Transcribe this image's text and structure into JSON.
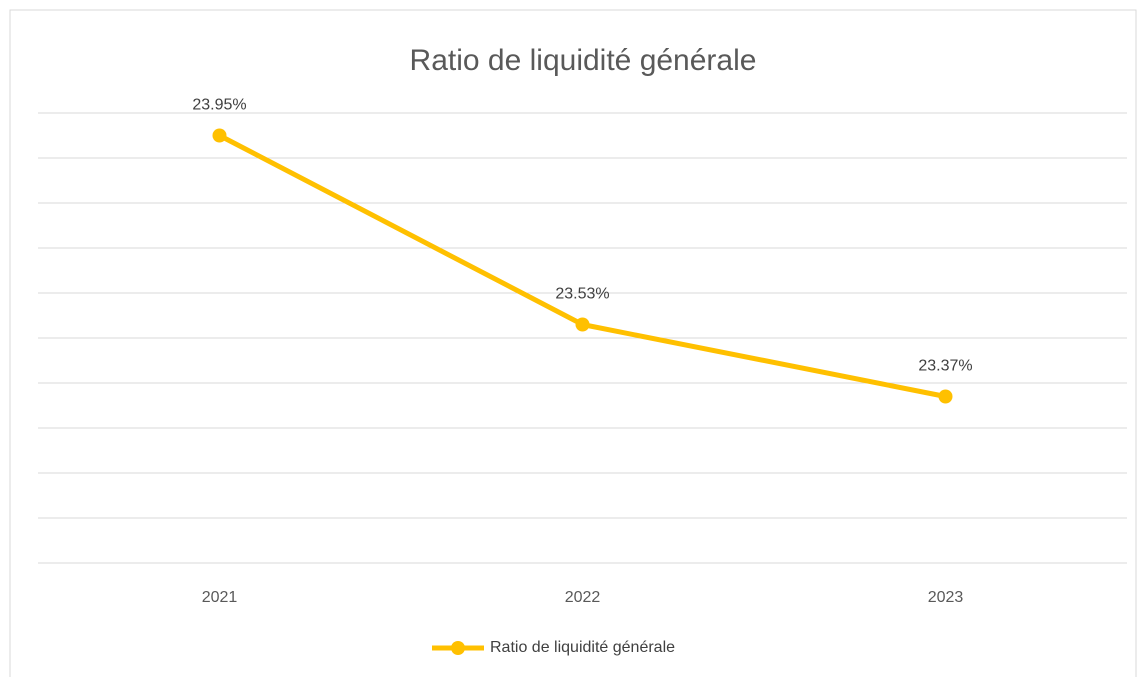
{
  "chart_data": {
    "type": "line",
    "title": "Ratio de liquidité générale",
    "categories": [
      "2021",
      "2022",
      "2023"
    ],
    "series": [
      {
        "name": "Ratio de liquidité générale",
        "color": "#ffc000",
        "values": [
          23.95,
          23.53,
          23.37
        ],
        "value_labels": [
          "23.95%",
          "23.53%",
          "23.37%"
        ]
      }
    ],
    "ylim": [
      23,
      24
    ],
    "yticks": [
      23,
      23.1,
      23.2,
      23.3,
      23.4,
      23.5,
      23.6,
      23.7,
      23.8,
      23.9,
      24
    ],
    "grid": true,
    "legend": "bottom"
  }
}
